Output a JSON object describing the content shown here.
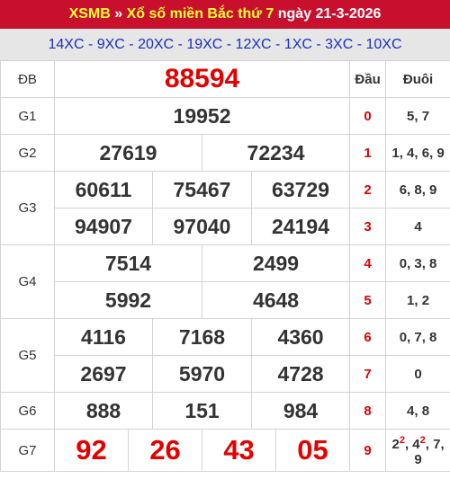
{
  "header": {
    "site": "XSMB",
    "sep": "»",
    "title": "Xổ số miền Bắc thứ 7",
    "date_text": "ngày 21-3-2026"
  },
  "codes": "14XC - 9XC - 20XC - 19XC - 12XC - 1XC - 3XC - 10XC",
  "labels": {
    "db": "ĐB",
    "g1": "G1",
    "g2": "G2",
    "g3": "G3",
    "g4": "G4",
    "g5": "G5",
    "g6": "G6",
    "g7": "G7"
  },
  "prizes": {
    "db": "88594",
    "g1": "19952",
    "g2": [
      "27619",
      "72234"
    ],
    "g3": [
      "60611",
      "75467",
      "63729",
      "94907",
      "97040",
      "24194"
    ],
    "g4": [
      "7514",
      "2499",
      "5992",
      "4648"
    ],
    "g5": [
      "4116",
      "7168",
      "4360",
      "2697",
      "5970",
      "4728"
    ],
    "g6": [
      "888",
      "151",
      "984"
    ],
    "g7": [
      "92",
      "26",
      "43",
      "05"
    ]
  },
  "loto": {
    "head_dau": "Đầu",
    "head_duoi": "Đuôi",
    "rows": [
      {
        "dau": "0",
        "duoi": "5, 7"
      },
      {
        "dau": "1",
        "duoi": "1, 4, 6, 9"
      },
      {
        "dau": "2",
        "duoi": "6, 8, 9"
      },
      {
        "dau": "3",
        "duoi": "4"
      },
      {
        "dau": "4",
        "duoi": "0, 3, 8"
      },
      {
        "dau": "5",
        "duoi": "1, 2"
      },
      {
        "dau": "6",
        "duoi": "0, 7, 8"
      },
      {
        "dau": "7",
        "duoi": "0"
      },
      {
        "dau": "8",
        "duoi": "4, 8"
      },
      {
        "dau": "9",
        "duoi_parts": {
          "a": "2",
          "a_sup": "2",
          "b": "4",
          "b_sup": "2",
          "c": "7",
          "d": "9"
        }
      }
    ]
  },
  "colors": {
    "header_bg": "#c8102e",
    "header_site": "#ffff33",
    "codes_text": "#1a2fbf",
    "codes_bg": "#e6e6e6",
    "accent_red": "#e30000"
  }
}
